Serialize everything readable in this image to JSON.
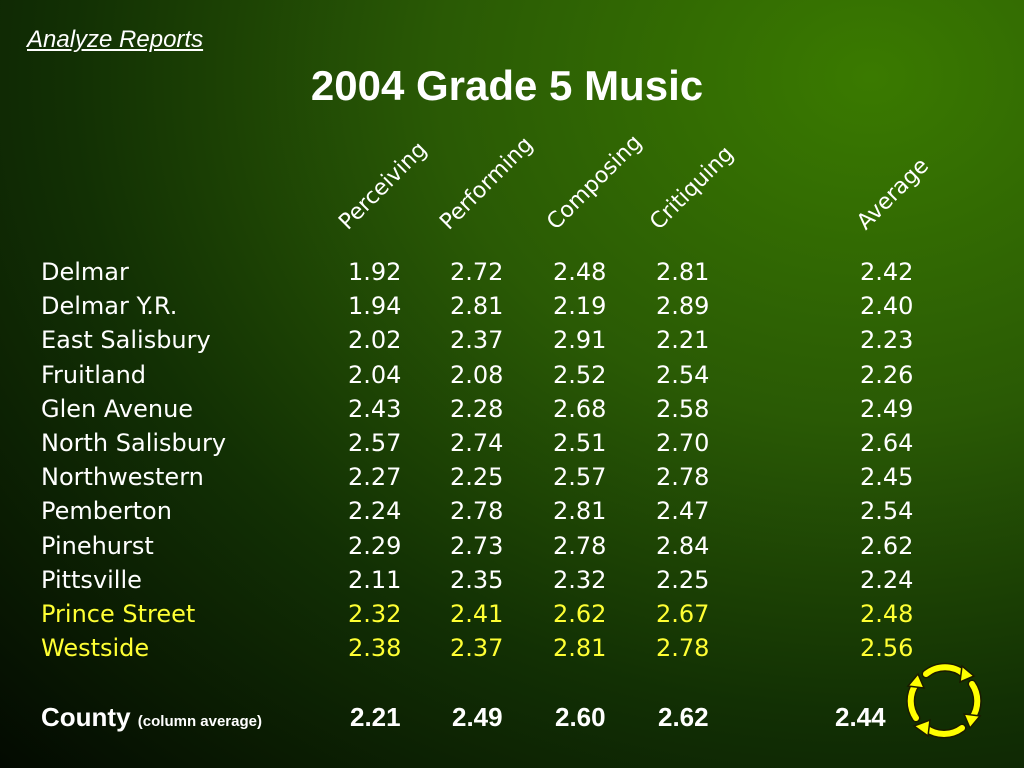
{
  "nav": {
    "link_label": "Analyze Reports"
  },
  "slide": {
    "title": "2004 Grade 5 Music"
  },
  "columns": [
    "Perceiving",
    "Performing",
    "Composing",
    "Critiquing",
    "Average"
  ],
  "rows": [
    {
      "name": "Delmar",
      "values": [
        "1.92",
        "2.72",
        "2.48",
        "2.81",
        "2.42"
      ],
      "highlight": false
    },
    {
      "name": "Delmar Y.R.",
      "values": [
        "1.94",
        "2.81",
        "2.19",
        "2.89",
        "2.40"
      ],
      "highlight": false
    },
    {
      "name": "East Salisbury",
      "values": [
        "2.02",
        "2.37",
        "2.91",
        "2.21",
        "2.23"
      ],
      "highlight": false
    },
    {
      "name": "Fruitland",
      "values": [
        "2.04",
        "2.08",
        "2.52",
        "2.54",
        "2.26"
      ],
      "highlight": false
    },
    {
      "name": "Glen Avenue",
      "values": [
        "2.43",
        "2.28",
        "2.68",
        "2.58",
        "2.49"
      ],
      "highlight": false
    },
    {
      "name": "North Salisbury",
      "values": [
        "2.57",
        "2.74",
        "2.51",
        "2.70",
        "2.64"
      ],
      "highlight": false
    },
    {
      "name": "Northwestern",
      "values": [
        "2.27",
        "2.25",
        "2.57",
        "2.78",
        "2.45"
      ],
      "highlight": false
    },
    {
      "name": "Pemberton",
      "values": [
        "2.24",
        "2.78",
        "2.81",
        "2.47",
        "2.54"
      ],
      "highlight": false
    },
    {
      "name": "Pinehurst",
      "values": [
        "2.29",
        "2.73",
        "2.78",
        "2.84",
        "2.62"
      ],
      "highlight": false
    },
    {
      "name": "Pittsville",
      "values": [
        "2.11",
        "2.35",
        "2.32",
        "2.25",
        "2.24"
      ],
      "highlight": false
    },
    {
      "name": "Prince Street",
      "values": [
        "2.32",
        "2.41",
        "2.62",
        "2.67",
        "2.48"
      ],
      "highlight": true
    },
    {
      "name": "Westside",
      "values": [
        "2.38",
        "2.37",
        "2.81",
        "2.78",
        "2.56"
      ],
      "highlight": true
    }
  ],
  "county": {
    "label": "County",
    "note": "(column average)",
    "values": [
      "2.21",
      "2.49",
      "2.60",
      "2.62",
      "2.44"
    ]
  },
  "colors": {
    "highlight": "#ffff33",
    "text": "#ffffff",
    "cycle_icon": "#ffff00"
  },
  "icons": {
    "cycle": "cycle-arrows-icon"
  }
}
